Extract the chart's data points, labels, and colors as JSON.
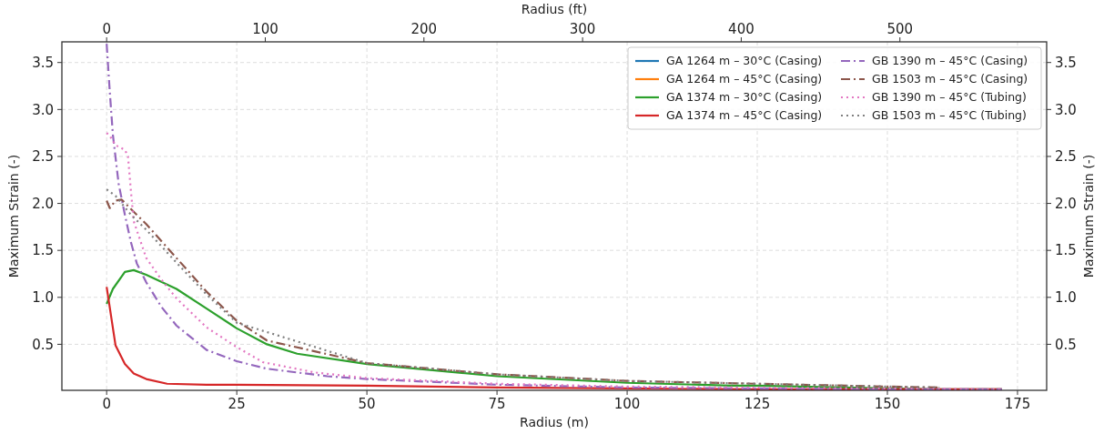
{
  "chart_data": {
    "type": "line",
    "xlabel": "Radius (m)",
    "ylabel": "Maximum Strain (-)",
    "y2label": "Maximum Strain (-)",
    "x2label": "Radius (ft)",
    "xlim": [
      -8.6,
      180.6
    ],
    "xticks": [
      0,
      25,
      50,
      75,
      100,
      125,
      150,
      175
    ],
    "x2lim": [
      -28.2,
      592.5
    ],
    "x2ticks": [
      0,
      100,
      200,
      300,
      400,
      500
    ],
    "ylim": [
      0.01,
      3.72
    ],
    "yticks": [
      0.5,
      {
        "value": 1,
        "label": "1.0"
      },
      1.5,
      {
        "value": 2,
        "label": "2.0"
      },
      2.5,
      {
        "value": 3,
        "label": "3.0"
      },
      3.5
    ],
    "y2lim": [
      0.01,
      3.72
    ],
    "y2ticks": [
      0.5,
      {
        "value": 1,
        "label": "1.0"
      },
      1.5,
      {
        "value": 2,
        "label": "2.0"
      },
      2.5,
      {
        "value": 3,
        "label": "3.0"
      },
      3.5
    ],
    "grid": true,
    "legend": "top right",
    "series": [
      {
        "name": "GA 1264 m – 30°C (Casing)",
        "color": "#1f77b4",
        "line_style": "solid",
        "values": [
          null
        ]
      },
      {
        "name": "GA 1264 m – 45°C (Casing)",
        "color": "#ff7f0e",
        "line_style": "solid",
        "values": [
          null
        ]
      },
      {
        "name": "GA 1374 m – 30°C (Casing)",
        "color": "#2ca02c",
        "line_style": "solid",
        "x": [
          0,
          1.2,
          3.5,
          5.2,
          7.6,
          13.4,
          19.2,
          25,
          30.8,
          36.6,
          50,
          75,
          100,
          120,
          125,
          150,
          160,
          172
        ],
        "values": [
          0.93,
          1.09,
          1.27,
          1.29,
          1.24,
          1.09,
          0.88,
          0.67,
          0.5,
          0.4,
          0.29,
          0.16,
          0.09,
          0.06,
          0.06,
          0.03,
          0.02,
          0.02
        ]
      },
      {
        "name": "GA 1374 m – 45°C (Casing)",
        "color": "#d62728",
        "line_style": "solid",
        "x": [
          0,
          1.7,
          3.5,
          5.2,
          7.6,
          11.6,
          19.2,
          25,
          50,
          75,
          100,
          125,
          150,
          172
        ],
        "values": [
          1.11,
          0.49,
          0.29,
          0.19,
          0.13,
          0.08,
          0.07,
          0.07,
          0.06,
          0.04,
          0.03,
          0.02,
          0.02,
          0.02
        ]
      },
      {
        "name": "GB 1390 m – 45°C (Casing)",
        "color": "#9467bd",
        "line_style": "dashdot",
        "x": [
          0,
          0.6,
          1.2,
          2.3,
          3.5,
          4.65,
          5.8,
          7.6,
          10.5,
          13.4,
          19.2,
          25,
          30.8,
          42.4,
          50,
          75,
          100,
          125,
          150,
          172
        ],
        "values": [
          3.7,
          3.19,
          2.73,
          2.21,
          1.88,
          1.59,
          1.36,
          1.16,
          0.9,
          0.7,
          0.44,
          0.32,
          0.24,
          0.16,
          0.13,
          0.07,
          0.04,
          0.03,
          0.02,
          0.02
        ]
      },
      {
        "name": "GB 1503 m – 45°C (Casing)",
        "color": "#8c564b",
        "line_style": "dashdot",
        "x": [
          0,
          0.6,
          1.7,
          2.9,
          5.2,
          7.6,
          13.4,
          19.2,
          25,
          30.8,
          50,
          75,
          100,
          125,
          150,
          160
        ],
        "values": [
          2.03,
          1.95,
          2.03,
          2.04,
          1.91,
          1.78,
          1.42,
          1.06,
          0.75,
          0.54,
          0.3,
          0.18,
          0.11,
          0.08,
          0.05,
          0.04
        ]
      },
      {
        "name": "GB 1390 m – 45°C (Tubing)",
        "color": "#e377c2",
        "line_style": "dotted",
        "x": [
          0,
          0.6,
          1.7,
          3.5,
          4.1,
          4.65,
          5.2,
          7.6,
          10.5,
          13.4,
          19.2,
          25,
          30,
          40,
          50,
          75,
          100,
          125,
          150,
          172
        ],
        "values": [
          2.75,
          2.72,
          2.62,
          2.57,
          2.5,
          2.14,
          1.81,
          1.42,
          1.19,
          0.99,
          0.68,
          0.47,
          0.31,
          0.2,
          0.14,
          0.08,
          0.05,
          0.04,
          0.03,
          0.02
        ]
      },
      {
        "name": "GB 1503 m – 45°C (Tubing)",
        "color": "#7f7f7f",
        "line_style": "dotted",
        "x": [
          0,
          1.7,
          4.65,
          7.6,
          13.4,
          19.2,
          25,
          50,
          75,
          100,
          125,
          150,
          160
        ],
        "values": [
          2.15,
          2.08,
          1.88,
          1.72,
          1.37,
          1.03,
          0.73,
          0.3,
          0.18,
          0.11,
          0.08,
          0.05,
          0.04
        ]
      }
    ]
  }
}
